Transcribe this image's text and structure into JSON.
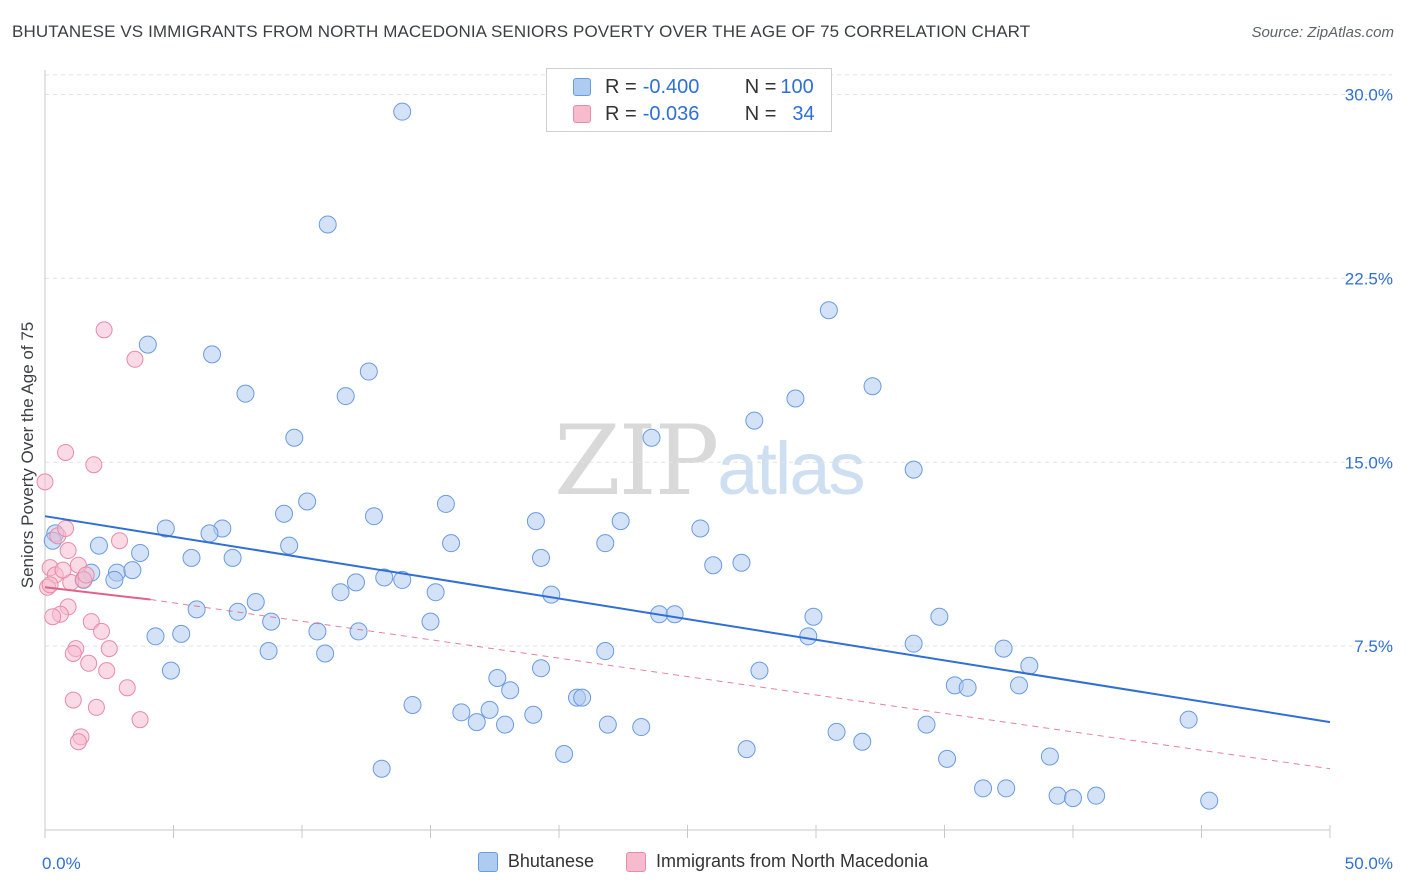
{
  "title": "BHUTANESE VS IMMIGRANTS FROM NORTH MACEDONIA SENIORS POVERTY OVER THE AGE OF 75 CORRELATION CHART",
  "source": "Source: ZipAtlas.com",
  "watermark": {
    "zip": "ZIP",
    "atlas": "atlas"
  },
  "legend": {
    "rows": [
      {
        "r_label": "R = ",
        "r_value": "-0.400",
        "n_label": "N = ",
        "n_value": "100"
      },
      {
        "r_label": "R = ",
        "r_value": "-0.036",
        "n_label": "N = ",
        "n_value": "34"
      }
    ]
  },
  "colors": {
    "blue_fill": "#aecbf0",
    "blue_stroke": "#6a9be0",
    "blue_line": "#2f6fd6",
    "pink_fill": "#f6bccd",
    "pink_stroke": "#e88aa8",
    "pink_line": "#e0628a",
    "grid": "#e3e3e3",
    "tick_label": "#2f6fd6"
  },
  "chart_data": {
    "type": "scatter",
    "xlabel": "",
    "ylabel": "Seniors Poverty Over the Age of 75",
    "xlim": [
      0,
      50
    ],
    "ylim": [
      0,
      31
    ],
    "x_tick_labels": {
      "min": "0.0%",
      "max": "50.0%"
    },
    "y_ticks": [
      {
        "value": 7.5,
        "label": "7.5%"
      },
      {
        "value": 15,
        "label": "15.0%"
      },
      {
        "value": 22.5,
        "label": "22.5%"
      },
      {
        "value": 30,
        "label": "30.0%"
      }
    ],
    "grid": true,
    "legend_position": "top-center",
    "series": [
      {
        "name": "Bhutanese",
        "color": "#aecbf0",
        "trend": {
          "x": [
            0,
            50
          ],
          "y": [
            12.8,
            4.4
          ]
        },
        "points": [
          {
            "x": 13.9,
            "y": 29.3
          },
          {
            "x": 11.0,
            "y": 24.7
          },
          {
            "x": 30.5,
            "y": 21.2
          },
          {
            "x": 4.0,
            "y": 19.8
          },
          {
            "x": 6.5,
            "y": 19.4
          },
          {
            "x": 12.6,
            "y": 18.7
          },
          {
            "x": 7.8,
            "y": 17.8
          },
          {
            "x": 11.7,
            "y": 17.7
          },
          {
            "x": 29.2,
            "y": 17.6
          },
          {
            "x": 32.2,
            "y": 18.1
          },
          {
            "x": 27.6,
            "y": 16.7
          },
          {
            "x": 9.7,
            "y": 16.0
          },
          {
            "x": 23.6,
            "y": 16.0
          },
          {
            "x": 33.8,
            "y": 14.7
          },
          {
            "x": 10.2,
            "y": 13.4
          },
          {
            "x": 15.6,
            "y": 13.3
          },
          {
            "x": 9.3,
            "y": 12.9
          },
          {
            "x": 12.8,
            "y": 12.8
          },
          {
            "x": 19.1,
            "y": 12.6
          },
          {
            "x": 22.4,
            "y": 12.6
          },
          {
            "x": 25.5,
            "y": 12.3
          },
          {
            "x": 4.7,
            "y": 12.3
          },
          {
            "x": 6.9,
            "y": 12.3
          },
          {
            "x": 6.4,
            "y": 12.1
          },
          {
            "x": 0.4,
            "y": 12.1
          },
          {
            "x": 0.3,
            "y": 11.8
          },
          {
            "x": 2.1,
            "y": 11.6
          },
          {
            "x": 9.5,
            "y": 11.6
          },
          {
            "x": 15.8,
            "y": 11.7
          },
          {
            "x": 21.8,
            "y": 11.7
          },
          {
            "x": 3.7,
            "y": 11.3
          },
          {
            "x": 5.7,
            "y": 11.1
          },
          {
            "x": 7.3,
            "y": 11.1
          },
          {
            "x": 19.3,
            "y": 11.1
          },
          {
            "x": 27.1,
            "y": 10.9
          },
          {
            "x": 1.8,
            "y": 10.5
          },
          {
            "x": 2.8,
            "y": 10.5
          },
          {
            "x": 3.4,
            "y": 10.6
          },
          {
            "x": 1.5,
            "y": 10.2
          },
          {
            "x": 2.7,
            "y": 10.2
          },
          {
            "x": 12.1,
            "y": 10.1
          },
          {
            "x": 13.9,
            "y": 10.2
          },
          {
            "x": 11.5,
            "y": 9.7
          },
          {
            "x": 15.2,
            "y": 9.7
          },
          {
            "x": 19.7,
            "y": 9.6
          },
          {
            "x": 8.2,
            "y": 9.3
          },
          {
            "x": 5.9,
            "y": 9.0
          },
          {
            "x": 7.5,
            "y": 8.9
          },
          {
            "x": 23.9,
            "y": 8.8
          },
          {
            "x": 24.5,
            "y": 8.8
          },
          {
            "x": 34.8,
            "y": 8.7
          },
          {
            "x": 8.8,
            "y": 8.5
          },
          {
            "x": 15.0,
            "y": 8.5
          },
          {
            "x": 10.6,
            "y": 8.1
          },
          {
            "x": 12.2,
            "y": 8.1
          },
          {
            "x": 4.3,
            "y": 7.9
          },
          {
            "x": 5.3,
            "y": 8.0
          },
          {
            "x": 29.7,
            "y": 7.9
          },
          {
            "x": 33.8,
            "y": 7.6
          },
          {
            "x": 37.3,
            "y": 7.4
          },
          {
            "x": 8.7,
            "y": 7.3
          },
          {
            "x": 10.9,
            "y": 7.2
          },
          {
            "x": 21.8,
            "y": 7.3
          },
          {
            "x": 38.3,
            "y": 6.7
          },
          {
            "x": 19.3,
            "y": 6.6
          },
          {
            "x": 4.9,
            "y": 6.5
          },
          {
            "x": 27.8,
            "y": 6.5
          },
          {
            "x": 17.6,
            "y": 6.2
          },
          {
            "x": 35.4,
            "y": 5.9
          },
          {
            "x": 35.9,
            "y": 5.8
          },
          {
            "x": 37.9,
            "y": 5.9
          },
          {
            "x": 18.1,
            "y": 5.7
          },
          {
            "x": 20.7,
            "y": 5.4
          },
          {
            "x": 20.9,
            "y": 5.4
          },
          {
            "x": 14.3,
            "y": 5.1
          },
          {
            "x": 16.2,
            "y": 4.8
          },
          {
            "x": 17.3,
            "y": 4.9
          },
          {
            "x": 19.0,
            "y": 4.7
          },
          {
            "x": 21.9,
            "y": 4.3
          },
          {
            "x": 16.8,
            "y": 4.4
          },
          {
            "x": 17.9,
            "y": 4.3
          },
          {
            "x": 44.5,
            "y": 4.5
          },
          {
            "x": 34.3,
            "y": 4.3
          },
          {
            "x": 23.2,
            "y": 4.2
          },
          {
            "x": 30.8,
            "y": 4.0
          },
          {
            "x": 31.8,
            "y": 3.6
          },
          {
            "x": 27.3,
            "y": 3.3
          },
          {
            "x": 20.2,
            "y": 3.1
          },
          {
            "x": 35.1,
            "y": 2.9
          },
          {
            "x": 39.1,
            "y": 3.0
          },
          {
            "x": 13.1,
            "y": 2.5
          },
          {
            "x": 36.5,
            "y": 1.7
          },
          {
            "x": 37.4,
            "y": 1.7
          },
          {
            "x": 39.4,
            "y": 1.4
          },
          {
            "x": 40.0,
            "y": 1.3
          },
          {
            "x": 40.9,
            "y": 1.4
          },
          {
            "x": 45.3,
            "y": 1.2
          },
          {
            "x": 13.2,
            "y": 10.3
          },
          {
            "x": 26.0,
            "y": 10.8
          },
          {
            "x": 29.9,
            "y": 8.7
          }
        ]
      },
      {
        "name": "Immigrants from North Macedonia",
        "color": "#f6bccd",
        "trend_solid": {
          "x": [
            0,
            4.1
          ],
          "y": [
            9.9,
            9.4
          ]
        },
        "trend_dashed": {
          "x": [
            4.1,
            50
          ],
          "y": [
            9.4,
            2.5
          ]
        },
        "points": [
          {
            "x": 2.3,
            "y": 20.4
          },
          {
            "x": 3.5,
            "y": 19.2
          },
          {
            "x": 0.8,
            "y": 15.4
          },
          {
            "x": 1.9,
            "y": 14.9
          },
          {
            "x": 0.0,
            "y": 14.2
          },
          {
            "x": 0.5,
            "y": 12.0
          },
          {
            "x": 2.9,
            "y": 11.8
          },
          {
            "x": 0.9,
            "y": 11.4
          },
          {
            "x": 0.2,
            "y": 10.7
          },
          {
            "x": 1.3,
            "y": 10.8
          },
          {
            "x": 0.4,
            "y": 10.4
          },
          {
            "x": 1.0,
            "y": 10.1
          },
          {
            "x": 1.5,
            "y": 10.2
          },
          {
            "x": 0.1,
            "y": 9.9
          },
          {
            "x": 0.9,
            "y": 9.1
          },
          {
            "x": 0.6,
            "y": 8.8
          },
          {
            "x": 0.3,
            "y": 8.7
          },
          {
            "x": 1.8,
            "y": 8.5
          },
          {
            "x": 2.2,
            "y": 8.1
          },
          {
            "x": 1.2,
            "y": 7.4
          },
          {
            "x": 1.1,
            "y": 7.2
          },
          {
            "x": 1.7,
            "y": 6.8
          },
          {
            "x": 2.4,
            "y": 6.5
          },
          {
            "x": 3.2,
            "y": 5.8
          },
          {
            "x": 1.1,
            "y": 5.3
          },
          {
            "x": 2.0,
            "y": 5.0
          },
          {
            "x": 3.7,
            "y": 4.5
          },
          {
            "x": 1.4,
            "y": 3.8
          },
          {
            "x": 1.3,
            "y": 3.6
          },
          {
            "x": 0.7,
            "y": 10.6
          },
          {
            "x": 1.6,
            "y": 10.4
          },
          {
            "x": 0.2,
            "y": 10.0
          },
          {
            "x": 2.5,
            "y": 7.4
          },
          {
            "x": 0.8,
            "y": 12.3
          }
        ]
      }
    ]
  }
}
